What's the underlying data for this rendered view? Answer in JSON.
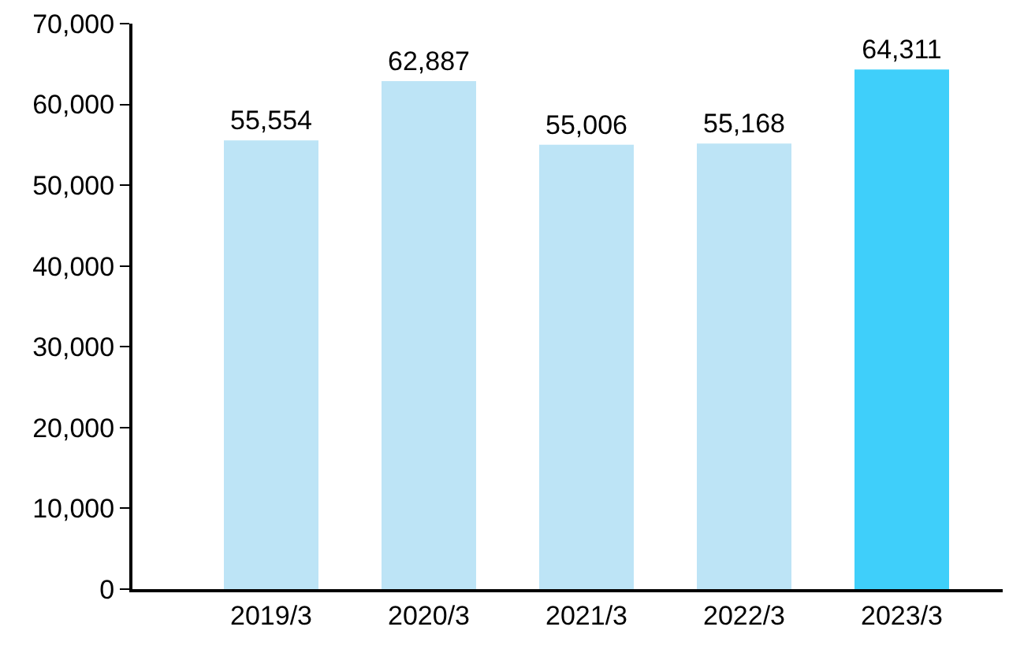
{
  "chart_data": {
    "type": "bar",
    "categories": [
      "2019/3",
      "2020/3",
      "2021/3",
      "2022/3",
      "2023/3"
    ],
    "values": [
      55554,
      62887,
      55006,
      55168,
      64311
    ],
    "value_labels": [
      "55,554",
      "62,887",
      "55,006",
      "55,168",
      "64,311"
    ],
    "colors": [
      "#bde4f6",
      "#bde4f6",
      "#bde4f6",
      "#bde4f6",
      "#3fcffa"
    ],
    "ylim": [
      0,
      70000
    ],
    "yticks": [
      0,
      {
        "value": 10000,
        "label": "10,000"
      },
      {
        "value": 20000,
        "label": "20,000"
      },
      {
        "value": 30000,
        "label": "30,000"
      },
      {
        "value": 40000,
        "label": "40,000"
      },
      {
        "value": 50000,
        "label": "50,000"
      },
      {
        "value": 60000,
        "label": "60,000"
      },
      {
        "value": 70000,
        "label": "70,000"
      }
    ],
    "data_labels": false
  }
}
